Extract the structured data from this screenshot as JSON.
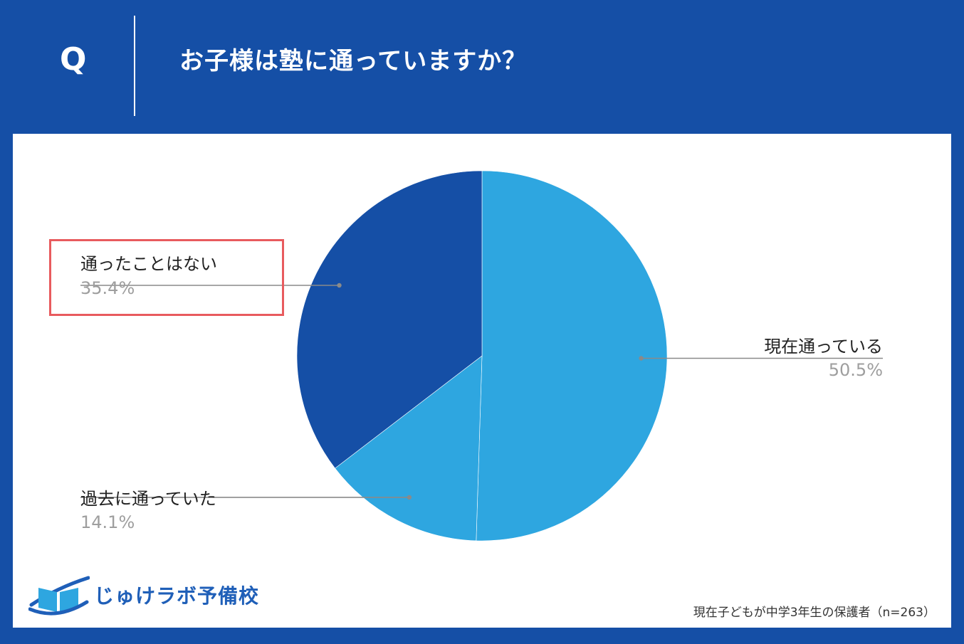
{
  "header": {
    "q_letter": "Q",
    "question": "お子様は塾に通っていますか？"
  },
  "chart_data": {
    "type": "pie",
    "title": "お子様は塾に通っていますか？",
    "slices": [
      {
        "label": "現在通っている",
        "value": 50.5,
        "display": "50.5%",
        "color": "#2ea6e0"
      },
      {
        "label": "過去に通っていた",
        "value": 14.1,
        "display": "14.1%",
        "color": "#2ea6e0"
      },
      {
        "label": "通ったことはない",
        "value": 35.4,
        "display": "35.4%",
        "color": "#154fa6",
        "highlighted": true
      }
    ],
    "start": "top, clockwise",
    "highlight_color": "#e85b5e"
  },
  "footer": {
    "logo_text": "じゅけラボ予備校",
    "footnote": "現在子どもが中学3年生の保護者（n=263）"
  }
}
